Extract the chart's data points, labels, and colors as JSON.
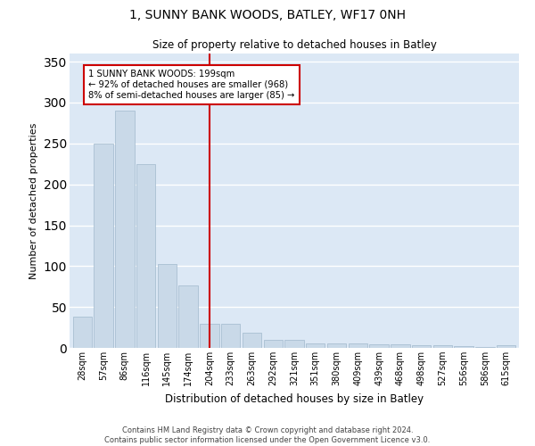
{
  "title": "1, SUNNY BANK WOODS, BATLEY, WF17 0NH",
  "subtitle": "Size of property relative to detached houses in Batley",
  "xlabel": "Distribution of detached houses by size in Batley",
  "ylabel": "Number of detached properties",
  "categories": [
    "28sqm",
    "57sqm",
    "86sqm",
    "116sqm",
    "145sqm",
    "174sqm",
    "204sqm",
    "233sqm",
    "263sqm",
    "292sqm",
    "321sqm",
    "351sqm",
    "380sqm",
    "409sqm",
    "439sqm",
    "468sqm",
    "498sqm",
    "527sqm",
    "556sqm",
    "586sqm",
    "615sqm"
  ],
  "values": [
    38,
    250,
    290,
    225,
    103,
    76,
    30,
    30,
    19,
    10,
    10,
    6,
    5,
    5,
    4,
    4,
    3,
    3,
    2,
    1,
    3
  ],
  "bar_color": "#c9d9e8",
  "bar_edge_color": "#a0b8cc",
  "property_line_x": 6,
  "property_line_color": "#cc0000",
  "annotation_text": "1 SUNNY BANK WOODS: 199sqm\n← 92% of detached houses are smaller (968)\n8% of semi-detached houses are larger (85) →",
  "annotation_box_color": "#cc0000",
  "ylim": [
    0,
    360
  ],
  "yticks": [
    0,
    50,
    100,
    150,
    200,
    250,
    300,
    350
  ],
  "bg_color": "#dce8f5",
  "grid_color": "#ffffff",
  "footer": "Contains HM Land Registry data © Crown copyright and database right 2024.\nContains public sector information licensed under the Open Government Licence v3.0."
}
